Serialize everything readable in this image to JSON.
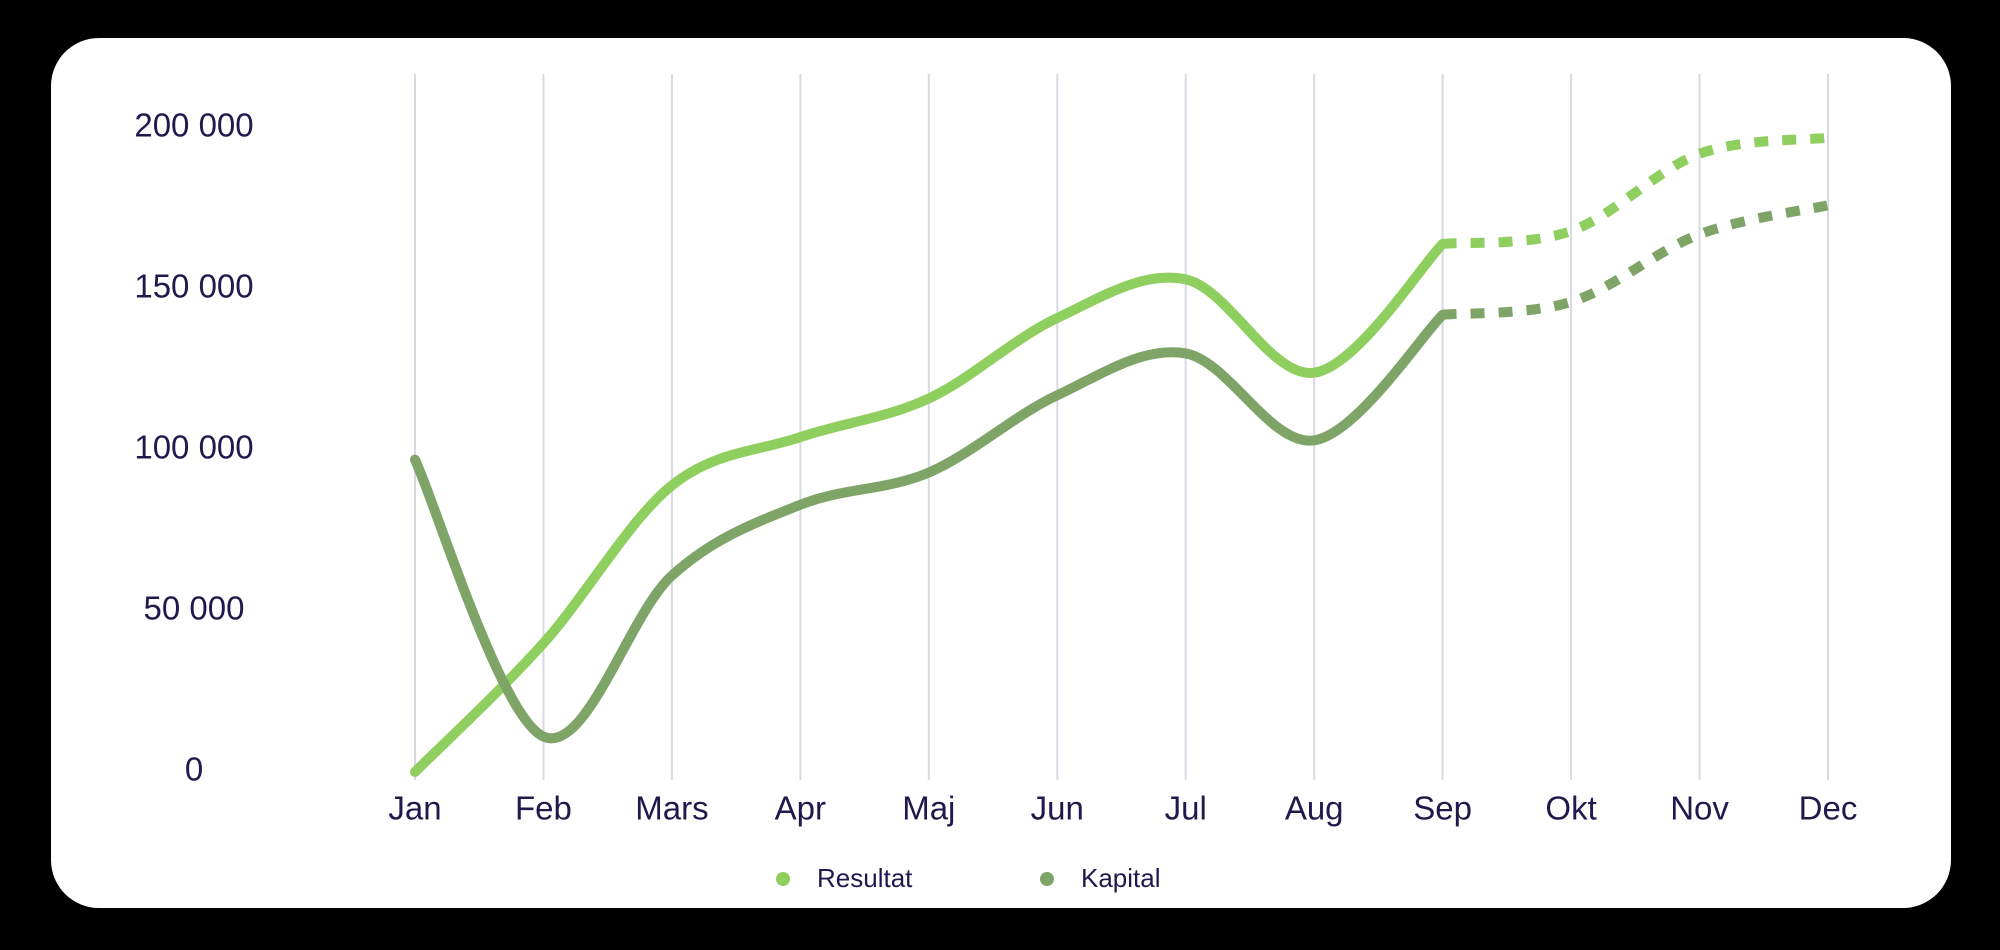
{
  "chart_data": {
    "type": "line",
    "categories": [
      "Jan",
      "Feb",
      "Mars",
      "Apr",
      "Maj",
      "Jun",
      "Jul",
      "Aug",
      "Sep",
      "Okt",
      "Nov",
      "Dec"
    ],
    "series": [
      {
        "name": "Resultat",
        "color": "#8fcf5f",
        "values": [
          0,
          40000,
          89000,
          104000,
          116000,
          141000,
          153000,
          124000,
          164000,
          168000,
          192000,
          197000
        ]
      },
      {
        "name": "Kapital",
        "color": "#7fa468",
        "values": [
          97000,
          11000,
          61000,
          83000,
          93000,
          117000,
          130000,
          103000,
          142000,
          146000,
          167000,
          176000
        ]
      }
    ],
    "dashed_from": 8,
    "ylim": [
      0,
      200000
    ],
    "yticks": [
      {
        "value": 0,
        "label": "0"
      },
      {
        "value": 50000,
        "label": "50 000"
      },
      {
        "value": 100000,
        "label": "100 000"
      },
      {
        "value": 150000,
        "label": "150 000"
      },
      {
        "value": 200000,
        "label": "200 000"
      }
    ],
    "grid": true
  }
}
